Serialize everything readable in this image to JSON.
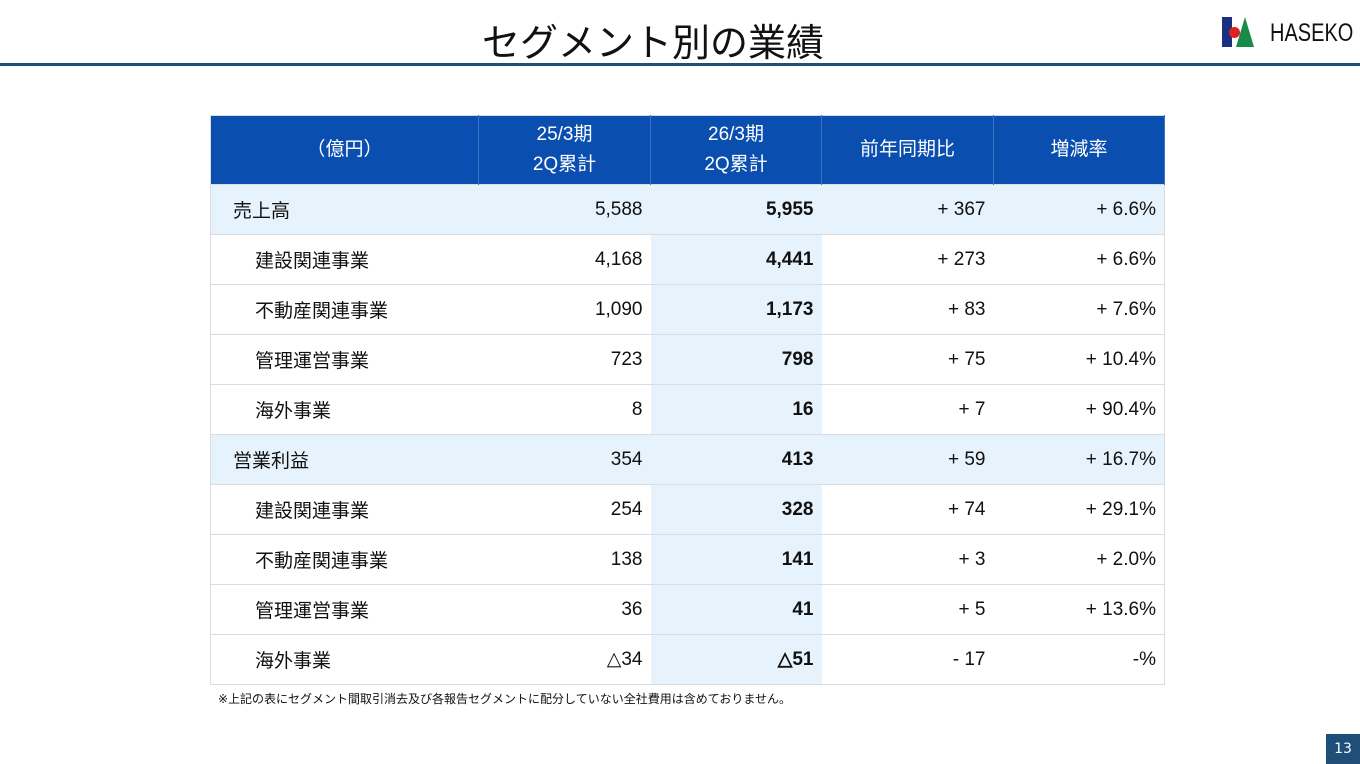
{
  "header": {
    "title": "セグメント別の業績",
    "logo_text": "HASEKO"
  },
  "table": {
    "columns": [
      "（億円）",
      "25/3期\n2Q累計",
      "26/3期\n2Q累計",
      "前年同期比",
      "増減率"
    ],
    "rows": [
      {
        "label": "売上高",
        "prev": "5,588",
        "cur": "5,955",
        "diff": "+ 367",
        "rate": "+ 6.6%",
        "total": true
      },
      {
        "label": "建設関連事業",
        "prev": "4,168",
        "cur": "4,441",
        "diff": "+ 273",
        "rate": "+ 6.6%"
      },
      {
        "label": "不動産関連事業",
        "prev": "1,090",
        "cur": "1,173",
        "diff": "+ 83",
        "rate": "+ 7.6%"
      },
      {
        "label": "管理運営事業",
        "prev": "723",
        "cur": "798",
        "diff": "+ 75",
        "rate": "+ 10.4%"
      },
      {
        "label": "海外事業",
        "prev": "8",
        "cur": "16",
        "diff": "+ 7",
        "rate": "+ 90.4%"
      },
      {
        "label": "営業利益",
        "prev": "354",
        "cur": "413",
        "diff": "+ 59",
        "rate": "+ 16.7%",
        "total": true
      },
      {
        "label": "建設関連事業",
        "prev": "254",
        "cur": "328",
        "diff": "+ 74",
        "rate": "+ 29.1%"
      },
      {
        "label": "不動産関連事業",
        "prev": "138",
        "cur": "141",
        "diff": "+ 3",
        "rate": "+ 2.0%"
      },
      {
        "label": "管理運営事業",
        "prev": "36",
        "cur": "41",
        "diff": "+ 5",
        "rate": "+ 13.6%"
      },
      {
        "label": "海外事業",
        "prev": "△34",
        "cur": "△51",
        "diff": "- 17",
        "rate": "-%"
      }
    ]
  },
  "footnote": "※上記の表にセグメント間取引消去及び各報告セグメントに配分していない全社費用は含めておりません。",
  "page_number": "13",
  "colors": {
    "header_bg": "#0a4fb0",
    "highlight": "#e6f2fc",
    "rule": "#1f4e79"
  }
}
